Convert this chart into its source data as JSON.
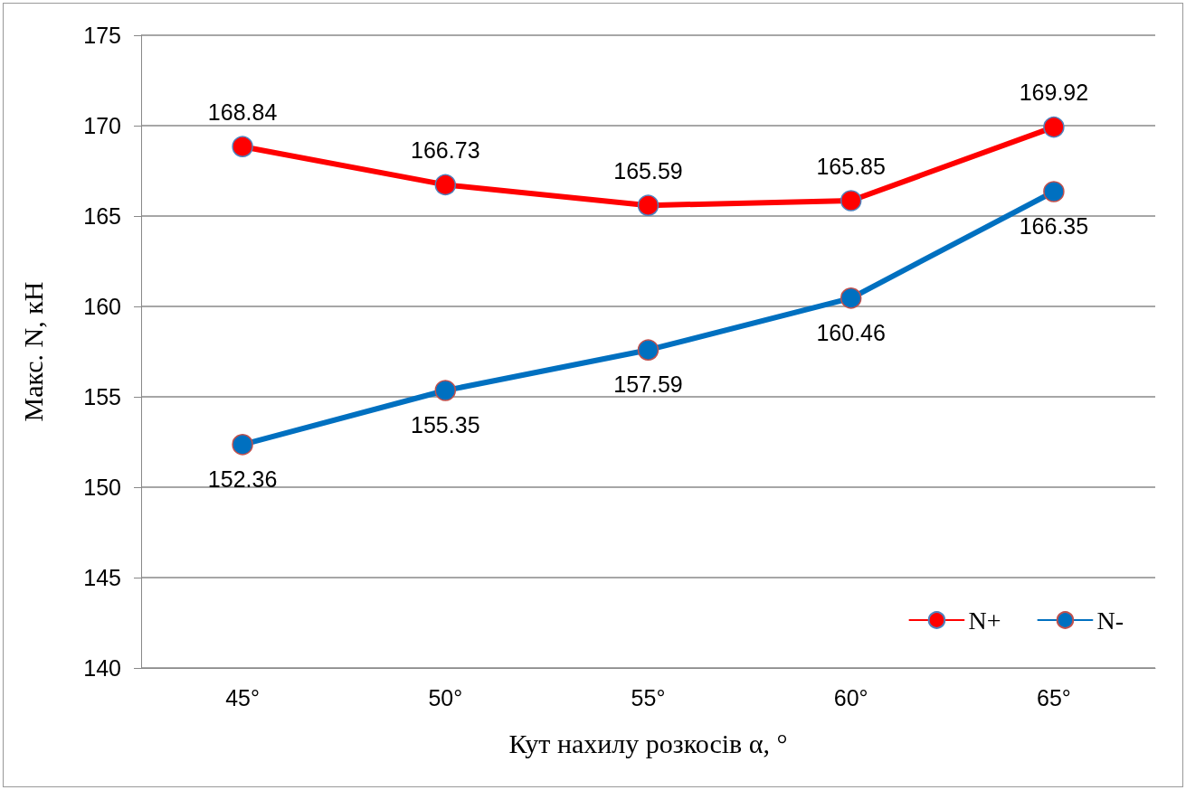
{
  "chart_data": {
    "type": "line",
    "xlabel": "Кут нахилу розкосів α, °",
    "ylabel": "Макс. N, кН",
    "categories": [
      "45°",
      "50°",
      "55°",
      "60°",
      "65°"
    ],
    "series": [
      {
        "name": "N+",
        "color": "#ff0000",
        "values": [
          168.84,
          166.73,
          165.59,
          165.85,
          169.92
        ]
      },
      {
        "name": "N-",
        "color": "#0070c0",
        "values": [
          152.36,
          155.35,
          157.59,
          160.46,
          166.35
        ]
      }
    ],
    "ylim": [
      140,
      175
    ],
    "yticks": [
      140,
      145,
      150,
      155,
      160,
      165,
      170,
      175
    ],
    "grid": "y",
    "legend": "bottom right",
    "marker": "circle",
    "line_style": "solid",
    "data_labels": true
  }
}
